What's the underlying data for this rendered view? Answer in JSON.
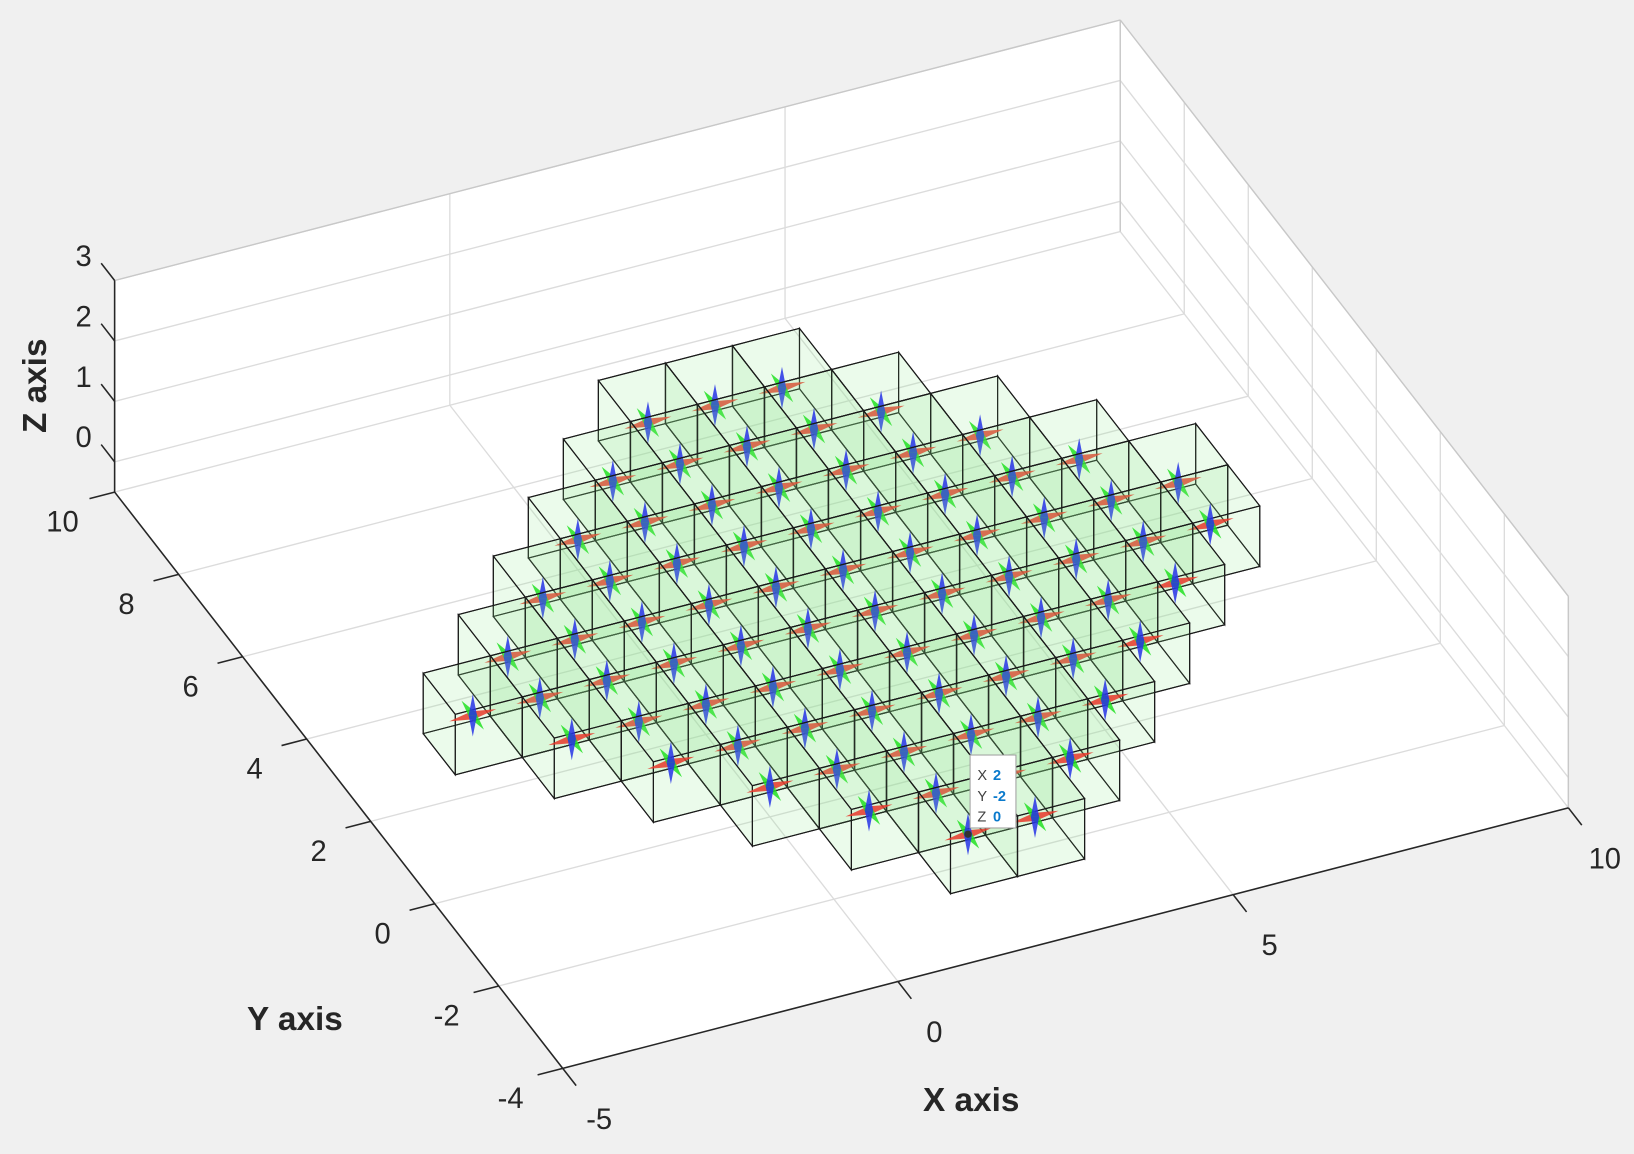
{
  "chart_data": {
    "type": "cubes3d",
    "xlabel": "X axis",
    "ylabel": "Y axis",
    "zlabel": "Z axis",
    "xlim": [
      -5,
      10
    ],
    "ylim": [
      -4,
      10
    ],
    "zlim": [
      -0.5,
      3
    ],
    "xticks": [
      -5,
      0,
      5,
      10
    ],
    "yticks": [
      -4,
      -2,
      0,
      2,
      4,
      6,
      8,
      10
    ],
    "zticks": [
      0,
      1,
      2,
      3
    ],
    "grid": true,
    "color": "#90ee90",
    "rows": [
      {
        "y": 8,
        "z": 0,
        "x": [
          2,
          3,
          4
        ]
      },
      {
        "y": 7,
        "z": 0,
        "x": [
          1,
          2,
          3,
          4,
          5
        ]
      },
      {
        "y": 6,
        "z": 0,
        "x": [
          0,
          1,
          2,
          3,
          4,
          5,
          6
        ]
      },
      {
        "y": 5,
        "z": 0,
        "x": [
          -1,
          0,
          1,
          2,
          3,
          4,
          5,
          6,
          7
        ]
      },
      {
        "y": 4,
        "z": 0,
        "x": [
          -2,
          -1,
          0,
          1,
          2,
          3,
          4,
          5,
          6,
          7,
          8
        ]
      },
      {
        "y": 3,
        "z": 0,
        "x": [
          -3,
          -2,
          -1,
          0,
          1,
          2,
          3,
          4,
          5,
          6,
          7,
          8
        ]
      },
      {
        "y": 2,
        "z": 0,
        "x": [
          -2,
          -1,
          0,
          1,
          2,
          3,
          4,
          5,
          6,
          7
        ]
      },
      {
        "y": 1,
        "z": 0,
        "x": [
          -1,
          0,
          1,
          2,
          3,
          4,
          5,
          6
        ]
      },
      {
        "y": 0,
        "z": 0,
        "x": [
          0,
          1,
          2,
          3,
          4,
          5
        ]
      },
      {
        "y": -1,
        "z": 0,
        "x": [
          1,
          2,
          3,
          4
        ]
      },
      {
        "y": -2,
        "z": 0,
        "x": [
          2,
          3
        ]
      }
    ],
    "datatip": {
      "labels": [
        "X",
        "Y",
        "Z"
      ],
      "values": [
        2,
        -2,
        0
      ]
    }
  }
}
